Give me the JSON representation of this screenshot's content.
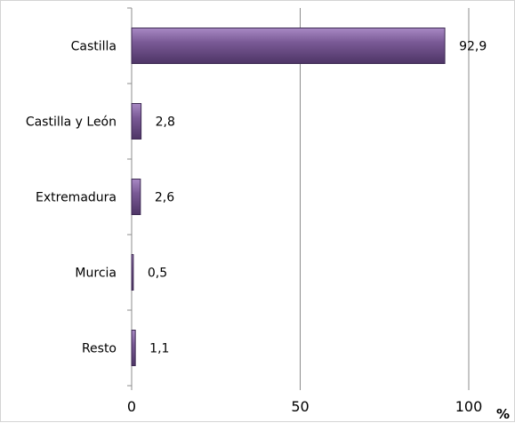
{
  "chart_data": {
    "type": "bar",
    "orientation": "horizontal",
    "categories": [
      "Castilla",
      "Castilla y León",
      "Extremadura",
      "Murcia",
      "Resto"
    ],
    "values": [
      92.9,
      2.8,
      2.6,
      0.5,
      1.1
    ],
    "value_labels": [
      "92,9",
      "2,8",
      "2,6",
      "0,5",
      "1,1"
    ],
    "xlim": [
      0,
      100
    ],
    "xticks": [
      0,
      50,
      100
    ],
    "xtick_labels": [
      "0",
      "50",
      "100"
    ],
    "unit": "%",
    "grid": "vertical",
    "legend": "none",
    "bar_color": "#7a5a96",
    "bar_edge_color": "#3d2a52"
  }
}
